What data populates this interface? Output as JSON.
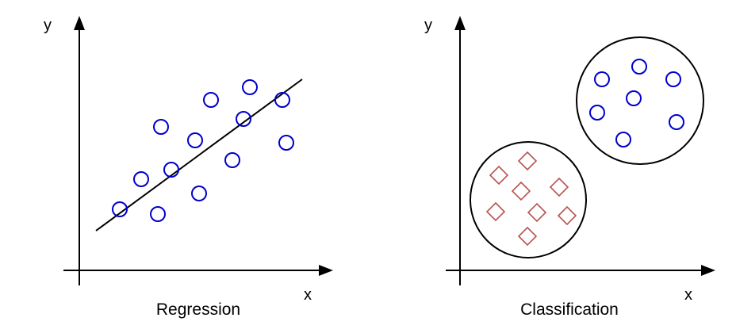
{
  "panels": [
    {
      "id": "regression",
      "caption": "Regression",
      "x_label": "x",
      "y_label": "y",
      "elements": [
        "data-point-circle",
        "regression-line"
      ]
    },
    {
      "id": "classification",
      "caption": "Classification",
      "x_label": "x",
      "y_label": "y",
      "elements": [
        "cluster-circle-blue-points",
        "cluster-circle-red-diamonds"
      ]
    }
  ],
  "colors": {
    "axis": "#000000",
    "blue_points": "#0000cc",
    "red_diamonds": "#b85450"
  }
}
